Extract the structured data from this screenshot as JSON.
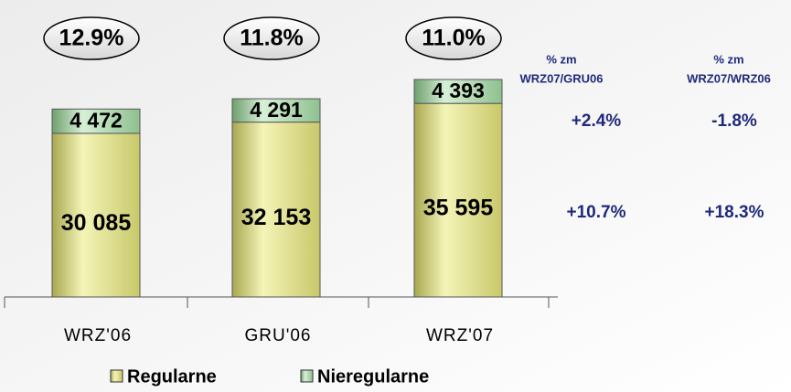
{
  "chart_data": {
    "type": "bar",
    "stacked": true,
    "categories": [
      "WRZ'06",
      "GRU'06",
      "WRZ'07"
    ],
    "series": [
      {
        "name": "Regularne",
        "color": "#e6e68c",
        "values": [
          30085,
          32153,
          35595
        ],
        "value_labels": [
          "30 085",
          "32 153",
          "35 595"
        ]
      },
      {
        "name": "Nieregularne",
        "color": "#b4dcb4",
        "values": [
          4472,
          4291,
          4393
        ],
        "value_labels": [
          "4 472",
          "4 291",
          "4 393"
        ]
      }
    ],
    "annotations": [
      "12.9%",
      "11.8%",
      "11.0%"
    ],
    "table": {
      "headers": [
        [
          "% zm",
          "WRZ07/GRU06"
        ],
        [
          "% zm",
          "WRZ07/WRZ06"
        ]
      ],
      "rows": [
        [
          "+2.4%",
          "-1.8%"
        ],
        [
          "+10.7%",
          "+18.3%"
        ]
      ]
    }
  }
}
